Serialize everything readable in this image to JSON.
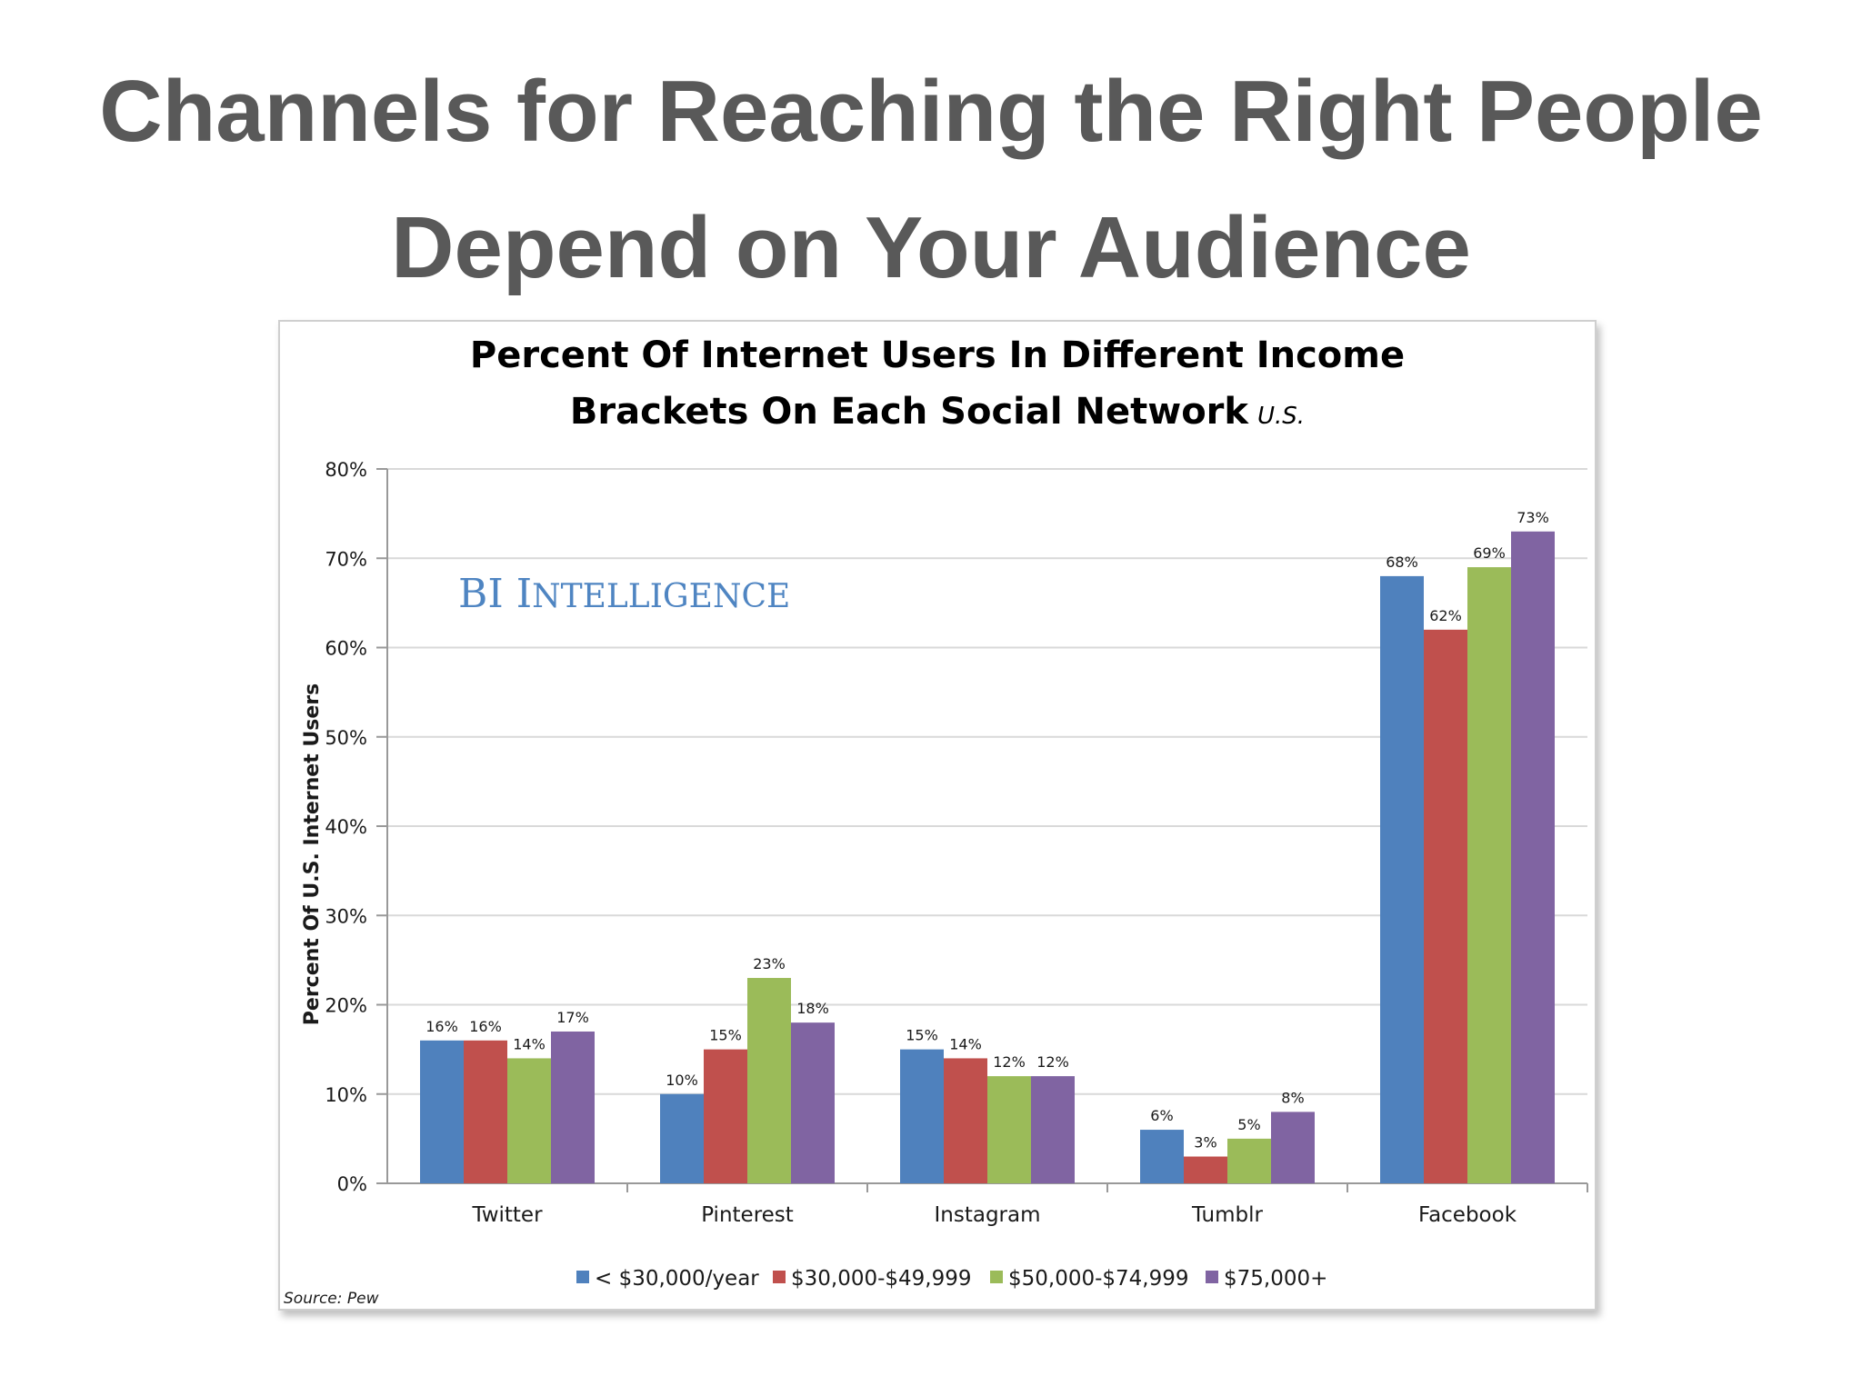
{
  "slide": {
    "title_line1": "Channels for Reaching the Right People",
    "title_line2": "Depend on Your Audience"
  },
  "colors": {
    "title": "#595959",
    "grid": "#d9d9d9",
    "brand": "#4f85c2"
  },
  "chart_data": {
    "type": "bar",
    "title_line1": "Percent Of Internet Users In Different Income",
    "title_line2": "Brackets On Each Social Network",
    "title_suffix": "U.S.",
    "ylabel": "Percent Of U.S. Internet Users",
    "xlabel": "",
    "ylim": [
      0,
      80
    ],
    "yticks": [
      0,
      10,
      20,
      30,
      40,
      50,
      60,
      70,
      80
    ],
    "ytick_labels": [
      "0%",
      "10%",
      "20%",
      "30%",
      "40%",
      "50%",
      "60%",
      "70%",
      "80%"
    ],
    "grid": true,
    "legend_position": "bottom",
    "categories": [
      "Twitter",
      "Pinterest",
      "Instagram",
      "Tumblr",
      "Facebook"
    ],
    "series": [
      {
        "name": "< $30,000/year",
        "color": "#4f81bd",
        "values": [
          16,
          10,
          15,
          6,
          68
        ],
        "labels": [
          "16%",
          "10%",
          "15%",
          "6%",
          "68%"
        ]
      },
      {
        "name": "$30,000-$49,999",
        "color": "#c0504d",
        "values": [
          16,
          15,
          14,
          3,
          62
        ],
        "labels": [
          "16%",
          "15%",
          "14%",
          "3%",
          "62%"
        ]
      },
      {
        "name": "$50,000-$74,999",
        "color": "#9bbb59",
        "values": [
          14,
          23,
          12,
          5,
          69
        ],
        "labels": [
          "14%",
          "23%",
          "12%",
          "5%",
          "69%"
        ]
      },
      {
        "name": "$75,000+",
        "color": "#8064a2",
        "values": [
          17,
          18,
          12,
          8,
          73
        ],
        "labels": [
          "17%",
          "18%",
          "12%",
          "8%",
          "73%"
        ]
      }
    ],
    "watermark": "BI INTELLIGENCE",
    "source": "Source: Pew"
  }
}
